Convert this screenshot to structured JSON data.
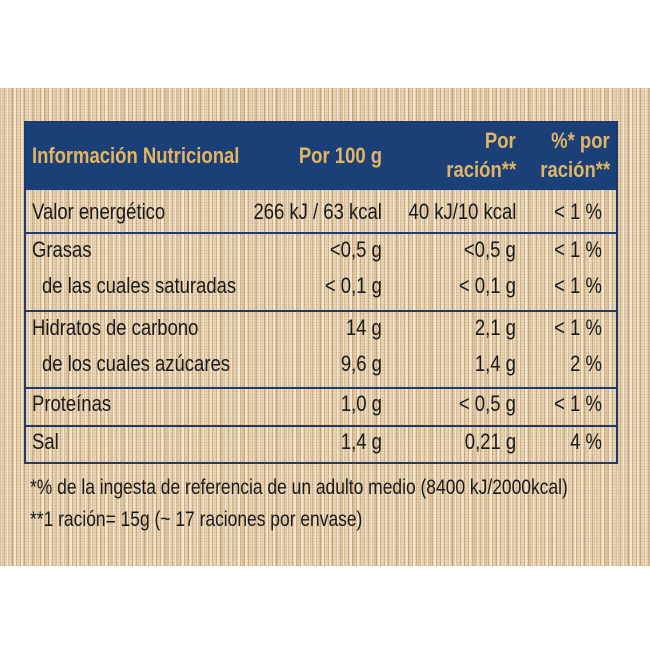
{
  "table": {
    "header": {
      "title": "Información Nutricional",
      "per100": "Por 100 g",
      "perServing_line1": "Por",
      "perServing_line2": "ración**",
      "pct_line1": "%* por",
      "pct_line2": "ración**"
    },
    "rows": [
      {
        "label": "Valor energético",
        "per100": "266 kJ / 63 kcal",
        "perServing": "40 kJ/10 kcal",
        "pct": "< 1 %"
      },
      {
        "label": "Grasas",
        "per100": "<0,5 g",
        "perServing": "<0,5 g",
        "pct": "< 1 %"
      },
      {
        "label": "de las cuales saturadas",
        "per100": "< 0,1 g",
        "perServing": "< 0,1 g",
        "pct": "< 1 %"
      },
      {
        "label": "Hidratos de carbono",
        "per100": "14 g",
        "perServing": "2,1 g",
        "pct": "< 1 %"
      },
      {
        "label": "de los cuales azúcares",
        "per100": "9,6 g",
        "perServing": "1,4 g",
        "pct": "2 %"
      },
      {
        "label": "Proteínas",
        "per100": "1,0 g",
        "perServing": "< 0,5 g",
        "pct": "< 1 %"
      },
      {
        "label": "Sal",
        "per100": "1,4 g",
        "perServing": "0,21 g",
        "pct": "4 %"
      }
    ]
  },
  "footnotes": {
    "note1": "*% de la ingesta de referencia de un adulto medio (8400 kJ/2000kcal)",
    "note2": "**1 ración= 15g (~ 17 raciones por envase)"
  },
  "colors": {
    "header_bg": "#1b4077",
    "header_text": "#e2b565",
    "border": "#1e3a6b",
    "panel": "#e9d4b3"
  }
}
